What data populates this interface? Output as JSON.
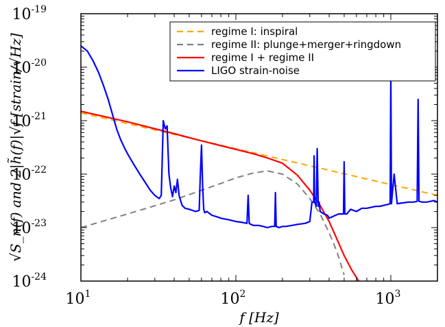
{
  "chart_data": {
    "type": "line",
    "title": "",
    "xlabel": "f [Hz]",
    "ylabel": "√S_n(f) and 2|h̃(f)|√f [strain/√Hz]",
    "xscale": "log",
    "yscale": "log",
    "xlim": [
      10,
      2000
    ],
    "ylim": [
      1e-24,
      1e-19
    ],
    "x_ticks": [
      {
        "value": 10,
        "base": "10",
        "exp": "1"
      },
      {
        "value": 100,
        "base": "10",
        "exp": "2"
      },
      {
        "value": 1000,
        "base": "10",
        "exp": "3"
      }
    ],
    "y_ticks": [
      {
        "value": 1e-24,
        "base": "10",
        "exp": "-24"
      },
      {
        "value": 1e-23,
        "base": "10",
        "exp": "-23"
      },
      {
        "value": 1e-22,
        "base": "10",
        "exp": "-22"
      },
      {
        "value": 1e-21,
        "base": "10",
        "exp": "-21"
      },
      {
        "value": 1e-20,
        "base": "10",
        "exp": "-20"
      },
      {
        "value": 1e-19,
        "base": "10",
        "exp": "-19"
      }
    ],
    "grid": false,
    "legend_position": "top-right",
    "series": [
      {
        "name": "regime I: inspiral",
        "color": "#ffa500",
        "style": "dashed",
        "x": [
          10,
          2000
        ],
        "y": [
          1.4e-21,
          4e-23
        ]
      },
      {
        "name": "regime II: plunge+merger+ringdown",
        "color": "#808080",
        "style": "dashed",
        "x": [
          10,
          20,
          40,
          60,
          80,
          100,
          130,
          160,
          200,
          250,
          300,
          350,
          400,
          450,
          500
        ],
        "y": [
          1e-23,
          1.8e-23,
          3.3e-23,
          5e-23,
          6.7e-23,
          8.5e-23,
          1.05e-22,
          1.15e-22,
          1e-22,
          6.5e-23,
          3.5e-23,
          1.8e-23,
          8e-24,
          3.5e-24,
          1.3e-24
        ]
      },
      {
        "name": "regime I + regime II",
        "color": "#ff0000",
        "style": "solid",
        "x": [
          10,
          20,
          40,
          60,
          80,
          100,
          130,
          160,
          200,
          250,
          300,
          350,
          400,
          450,
          500,
          560,
          620
        ],
        "y": [
          1.5e-21,
          9.5e-22,
          5.7e-22,
          4.2e-22,
          3.4e-22,
          2.9e-22,
          2.4e-22,
          2e-22,
          1.6e-22,
          9.5e-23,
          5e-23,
          2.6e-23,
          1.3e-23,
          6e-24,
          3e-24,
          1.6e-24,
          1e-24
        ]
      },
      {
        "name": "LIGO strain-noise",
        "color": "#0000ff",
        "style": "solid",
        "x": [
          10,
          11,
          12,
          13,
          14,
          15,
          16,
          17,
          18,
          19,
          20,
          22,
          24,
          26,
          28,
          30,
          32,
          33,
          34,
          35,
          36,
          37,
          38,
          39,
          40,
          41,
          42,
          43,
          44,
          45,
          47,
          50,
          55,
          58,
          59,
          60,
          61,
          62,
          63,
          65,
          70,
          75,
          80,
          90,
          100,
          110,
          118,
          120,
          122,
          125,
          130,
          140,
          150,
          160,
          170,
          178,
          180,
          182,
          190,
          200,
          210,
          230,
          250,
          280,
          300,
          310,
          318,
          320,
          322,
          330,
          335,
          340,
          345,
          350,
          370,
          390,
          400,
          420,
          440,
          460,
          480,
          495,
          500,
          505,
          520,
          550,
          600,
          650,
          700,
          750,
          800,
          850,
          900,
          950,
          990,
          1000,
          1010,
          1050,
          1100,
          1200,
          1300,
          1400,
          1480,
          1500,
          1520,
          1600,
          1700,
          1800,
          1900,
          2000
        ],
        "y": [
          2.5e-20,
          2e-20,
          1.3e-20,
          8e-21,
          4.5e-21,
          2.5e-21,
          1.3e-21,
          7e-22,
          4.5e-22,
          3.2e-22,
          2.4e-22,
          1.5e-22,
          1e-22,
          7e-23,
          5e-23,
          4e-23,
          3.5e-23,
          4e-23,
          1e-21,
          7e-22,
          8e-22,
          1e-22,
          5.5e-23,
          3.8e-23,
          6e-23,
          4.5e-23,
          8e-23,
          4e-23,
          3.2e-23,
          2.6e-23,
          2.3e-23,
          2.2e-23,
          2e-23,
          2.1e-23,
          1e-22,
          3.5e-22,
          6e-23,
          2.2e-23,
          1.9e-23,
          2e-23,
          1.7e-23,
          1.6e-23,
          1.5e-23,
          1.4e-23,
          1.3e-23,
          1.25e-23,
          1.2e-23,
          4e-23,
          1.2e-23,
          1.15e-23,
          1.1e-23,
          1.1e-23,
          1.05e-23,
          1e-23,
          1.05e-23,
          1.05e-23,
          4.5e-23,
          1.05e-23,
          1e-23,
          1.05e-23,
          1.05e-23,
          1.1e-23,
          1.15e-23,
          1.2e-23,
          1.3e-23,
          3e-23,
          3e-23,
          2.2e-22,
          3e-23,
          2.5e-23,
          3e-22,
          2.5e-23,
          3e-23,
          2e-23,
          1.8e-23,
          1.7e-23,
          1.5e-23,
          1.6e-23,
          1.7e-23,
          1.8e-23,
          1.8e-23,
          1.8e-23,
          1.7e-22,
          1.8e-23,
          1.8e-23,
          2.2e-23,
          2e-23,
          2.3e-23,
          2.3e-23,
          2.4e-23,
          2.5e-23,
          2.5e-23,
          2.6e-23,
          2.7e-23,
          2.8e-23,
          8e-21,
          2.8e-23,
          1e-22,
          2.8e-23,
          2.9e-23,
          3e-23,
          3e-23,
          3.1e-23,
          2.5e-21,
          3.1e-23,
          3e-23,
          3e-23,
          3.1e-23,
          3.2e-23,
          3e-23
        ]
      }
    ]
  }
}
